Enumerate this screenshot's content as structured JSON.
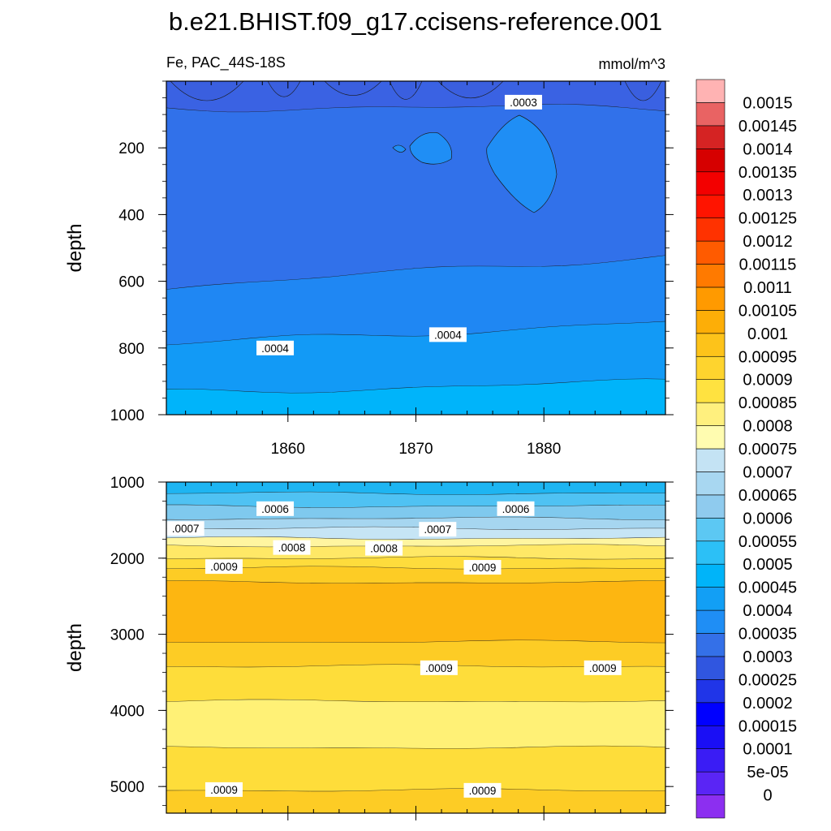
{
  "chart_data": {
    "type": "heatmap",
    "subtype": "filled-contour",
    "title": "b.e21.BHIST.f09_g17.ccisens-reference.001",
    "variable_label": "Fe, PAC_44S-18S",
    "units_label": "mmol/m^3",
    "xlabel": "",
    "ylabel": "depth",
    "x_ticks": [
      "1860",
      "1870",
      "1880"
    ],
    "x_range": [
      1850.5,
      1889.5
    ],
    "colorbar": {
      "levels": [
        "0",
        "5e-05",
        "0.0001",
        "0.00015",
        "0.0002",
        "0.00025",
        "0.0003",
        "0.00035",
        "0.0004",
        "0.00045",
        "0.0005",
        "0.00055",
        "0.0006",
        "0.00065",
        "0.0007",
        "0.00075",
        "0.0008",
        "0.00085",
        "0.0009",
        "0.00095",
        "0.001",
        "0.00105",
        "0.0011",
        "0.00115",
        "0.0012",
        "0.00125",
        "0.0013",
        "0.00135",
        "0.0014",
        "0.00145",
        "0.0015"
      ],
      "colors": [
        "#8c2ff0",
        "#5a25f5",
        "#3a1cf5",
        "#1a0ff5",
        "#0000ff",
        "#2035e8",
        "#3056e0",
        "#3470e8",
        "#1f8ef5",
        "#129ff5",
        "#00b4f9",
        "#2cc0f6",
        "#5cc8f3",
        "#8fcbee",
        "#a8d7f1",
        "#c4e3f4",
        "#fffcb0",
        "#fff07e",
        "#ffe240",
        "#fed42e",
        "#fdc31a",
        "#fdae07",
        "#ff9a00",
        "#ff7a00",
        "#ff5b00",
        "#ff3200",
        "#ff1400",
        "#f30000",
        "#d60000",
        "#d52323",
        "#e96363",
        "#ffb3b3"
      ]
    },
    "panels": [
      {
        "name": "upper",
        "ylim": [
          0,
          1000
        ],
        "y_ticks": [
          "200",
          "400",
          "600",
          "800",
          "1000"
        ],
        "bands": [
          {
            "level": "0.0002-0.00025",
            "color": "#3a62e3",
            "top_depth": 0,
            "bottom_depth": 80
          },
          {
            "level": "0.00025-0.0003",
            "color": "#3171ea",
            "top_depth": 80,
            "bottom_depth": 620
          },
          {
            "level": "0.0003-0.00035",
            "color": "#1f87f3",
            "top_depth": 620,
            "bottom_depth": 790
          },
          {
            "level": "0.00035-0.0004",
            "color": "#129af6",
            "top_depth": 790,
            "bottom_depth": 935
          },
          {
            "level": "0.0004-0.00045",
            "color": "#00b4fa",
            "top_depth": 935,
            "bottom_depth": 1000
          }
        ],
        "contour_labels": [
          {
            "text": ".0003",
            "year": 1878.4,
            "depth": 63
          },
          {
            "text": ".0004",
            "year": 1859.0,
            "depth": 800
          },
          {
            "text": ".0004",
            "year": 1872.5,
            "depth": 760
          }
        ]
      },
      {
        "name": "lower",
        "ylim": [
          1000,
          5350
        ],
        "y_ticks": [
          "1000",
          "2000",
          "3000",
          "4000",
          "5000"
        ],
        "bands": [
          {
            "level": "0.00045-0.0005",
            "color": "#1eb5f2",
            "top_depth": 1000,
            "bottom_depth": 1150
          },
          {
            "level": "0.0005-0.00055",
            "color": "#4fc2f3",
            "top_depth": 1150,
            "bottom_depth": 1320
          },
          {
            "level": "0.00055-0.0006",
            "color": "#7fc9ee",
            "top_depth": 1320,
            "bottom_depth": 1480
          },
          {
            "level": "0.0006-0.00065",
            "color": "#a6d6f0",
            "top_depth": 1480,
            "bottom_depth": 1610
          },
          {
            "level": "0.00065-0.0007",
            "color": "#c6e5f5",
            "top_depth": 1610,
            "bottom_depth": 1740
          },
          {
            "level": "0.00075-0.0008",
            "color": "#fff5a0",
            "top_depth": 1740,
            "bottom_depth": 1840
          },
          {
            "level": "0.0008-0.00085",
            "color": "#ffe866",
            "top_depth": 1840,
            "bottom_depth": 2000
          },
          {
            "level": "0.00085-0.0009",
            "color": "#fedc3c",
            "top_depth": 2000,
            "bottom_depth": 2130
          },
          {
            "level": "0.0009-0.00095",
            "color": "#fdcc25",
            "top_depth": 2130,
            "bottom_depth": 2320
          },
          {
            "level": "0.00095-0.001",
            "color": "#fdb611",
            "top_depth": 2320,
            "bottom_depth": 3100
          },
          {
            "level": "0.0009-0.00095",
            "color": "#fdcc25",
            "top_depth": 3100,
            "bottom_depth": 3420
          },
          {
            "level": "0.00085-0.0009",
            "color": "#fedd3a",
            "top_depth": 3420,
            "bottom_depth": 3880
          },
          {
            "level": "0.0008-0.00085",
            "color": "#fff176",
            "top_depth": 3880,
            "bottom_depth": 4490
          },
          {
            "level": "0.00085-0.0009",
            "color": "#fedd3a",
            "top_depth": 4490,
            "bottom_depth": 5050
          },
          {
            "level": "0.0009-0.00095",
            "color": "#fdcc25",
            "top_depth": 5050,
            "bottom_depth": 5350
          }
        ],
        "contour_labels": [
          {
            "text": ".0006",
            "year": 1859.0,
            "depth": 1350
          },
          {
            "text": ".0006",
            "year": 1877.8,
            "depth": 1350
          },
          {
            "text": ".0007",
            "year": 1852.0,
            "depth": 1610
          },
          {
            "text": ".0007",
            "year": 1871.7,
            "depth": 1620
          },
          {
            "text": ".0008",
            "year": 1860.3,
            "depth": 1860
          },
          {
            "text": ".0008",
            "year": 1867.5,
            "depth": 1870
          },
          {
            "text": ".0009",
            "year": 1855.0,
            "depth": 2110
          },
          {
            "text": ".0009",
            "year": 1875.2,
            "depth": 2120
          },
          {
            "text": ".0009",
            "year": 1871.8,
            "depth": 3440
          },
          {
            "text": ".0009",
            "year": 1884.6,
            "depth": 3440
          },
          {
            "text": ".0009",
            "year": 1855.0,
            "depth": 5040
          },
          {
            "text": ".0009",
            "year": 1875.2,
            "depth": 5050
          }
        ]
      }
    ]
  }
}
